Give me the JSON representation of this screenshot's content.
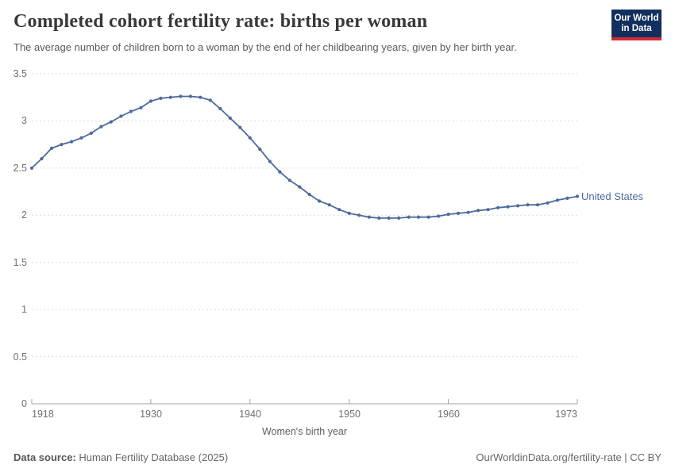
{
  "header": {
    "title": "Completed cohort fertility rate: births per woman",
    "subtitle": "The average number of children born to a woman by the end of her childbearing years, given by her birth year.",
    "logo": {
      "line1": "Our World",
      "line2": "in Data",
      "bg_color": "#12305e",
      "accent_color": "#cf2b36"
    }
  },
  "chart_data": {
    "type": "line",
    "title": "Completed cohort fertility rate: births per woman",
    "xlabel": "Women's birth year",
    "ylabel": "",
    "xlim": [
      1918,
      1973
    ],
    "ylim": [
      0,
      3.5
    ],
    "grid": "horizontal-dashed",
    "x_ticks": [
      "1918",
      "1930",
      "1940",
      "1950",
      "1960",
      "1973"
    ],
    "y_ticks": [
      "0",
      "0.5",
      "1",
      "1.5",
      "2",
      "2.5",
      "3",
      "3.5"
    ],
    "legend_position": "end-of-line-label",
    "series": [
      {
        "name": "United States",
        "color": "#4c6a9c",
        "x": [
          1918,
          1919,
          1920,
          1921,
          1922,
          1923,
          1924,
          1925,
          1926,
          1927,
          1928,
          1929,
          1930,
          1931,
          1932,
          1933,
          1934,
          1935,
          1936,
          1937,
          1938,
          1939,
          1940,
          1941,
          1942,
          1943,
          1944,
          1945,
          1946,
          1947,
          1948,
          1949,
          1950,
          1951,
          1952,
          1953,
          1954,
          1955,
          1956,
          1957,
          1958,
          1959,
          1960,
          1961,
          1962,
          1963,
          1964,
          1965,
          1966,
          1967,
          1968,
          1969,
          1970,
          1971,
          1972,
          1973
        ],
        "values": [
          2.5,
          2.6,
          2.71,
          2.75,
          2.78,
          2.82,
          2.87,
          2.94,
          2.99,
          3.05,
          3.1,
          3.14,
          3.21,
          3.24,
          3.25,
          3.26,
          3.26,
          3.25,
          3.22,
          3.13,
          3.03,
          2.93,
          2.82,
          2.7,
          2.57,
          2.46,
          2.37,
          2.3,
          2.22,
          2.15,
          2.11,
          2.06,
          2.02,
          2.0,
          1.98,
          1.97,
          1.97,
          1.97,
          1.98,
          1.98,
          1.98,
          1.99,
          2.01,
          2.02,
          2.03,
          2.05,
          2.06,
          2.08,
          2.09,
          2.1,
          2.11,
          2.11,
          2.13,
          2.16,
          2.18,
          2.2
        ]
      }
    ]
  },
  "footer": {
    "source_label": "Data source:",
    "source_text": " Human Fertility Database (2025)",
    "link_text": "OurWorldinData.org/fertility-rate | CC BY"
  }
}
